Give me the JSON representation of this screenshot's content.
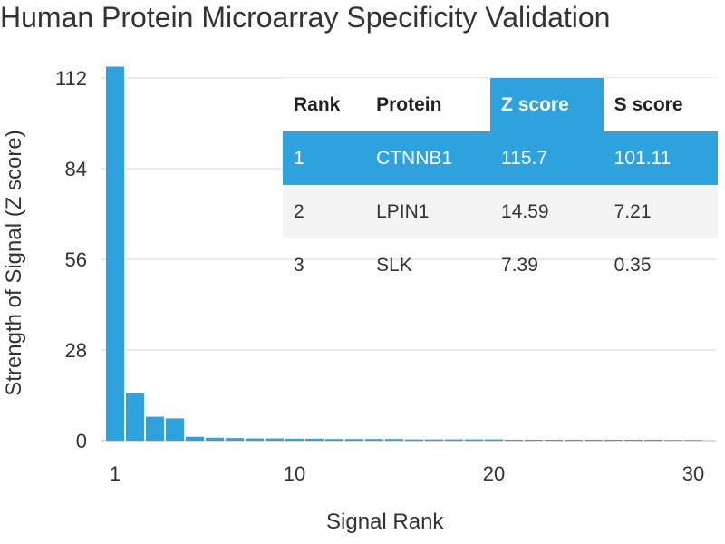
{
  "chart_data": {
    "type": "bar",
    "title": "Human Protein Microarray Specificity Validation",
    "xlabel": "Signal Rank",
    "ylabel": "Strength of Signal (Z score)",
    "x_ticks": [
      1,
      10,
      20,
      30
    ],
    "y_ticks": [
      0,
      28,
      56,
      84,
      112
    ],
    "ylim": [
      0,
      112
    ],
    "xlim": [
      1,
      30
    ],
    "x": [
      1,
      2,
      3,
      4,
      5,
      6,
      7,
      8,
      9,
      10,
      11,
      12,
      13,
      14,
      15,
      16,
      17,
      18,
      19,
      20,
      21,
      22,
      23,
      24,
      25,
      26,
      27,
      28,
      29,
      30
    ],
    "values": [
      115.7,
      14.59,
      7.39,
      6.9,
      1.2,
      0.9,
      0.8,
      0.7,
      0.7,
      0.6,
      0.6,
      0.5,
      0.5,
      0.5,
      0.5,
      0.4,
      0.4,
      0.4,
      0.4,
      0.4,
      0.3,
      0.3,
      0.3,
      0.3,
      0.3,
      0.3,
      0.3,
      0.3,
      0.2,
      0.2
    ],
    "bar_color": "#2ea2dc",
    "grid": true
  },
  "table": {
    "headers": [
      "Rank",
      "Protein",
      "Z score",
      "S score"
    ],
    "rows": [
      [
        "1",
        "CTNNB1",
        "115.7",
        "101.11"
      ],
      [
        "2",
        "LPIN1",
        "14.59",
        "7.21"
      ],
      [
        "3",
        "SLK",
        "7.39",
        "0.35"
      ]
    ],
    "highlight_color": "#2ea2dc"
  }
}
